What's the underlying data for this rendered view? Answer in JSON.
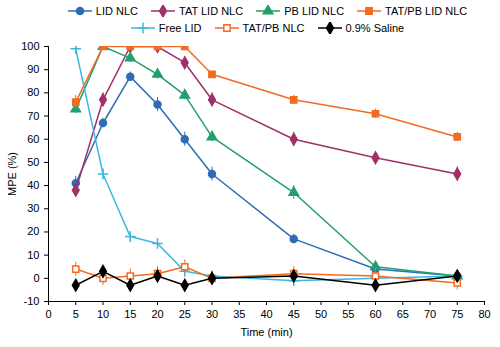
{
  "chart_data": {
    "type": "line",
    "x_label": "Time (min)",
    "y_label": "MPE (%)",
    "x": [
      5,
      10,
      15,
      20,
      25,
      30,
      45,
      60,
      75
    ],
    "xlim": [
      0,
      80
    ],
    "xticks": [
      0,
      5,
      10,
      15,
      20,
      25,
      30,
      35,
      40,
      45,
      50,
      55,
      60,
      65,
      70,
      75,
      80
    ],
    "ylim": [
      -10,
      100
    ],
    "yticks": [
      -10,
      0,
      10,
      20,
      30,
      40,
      50,
      60,
      70,
      80,
      90,
      100
    ],
    "grid": false,
    "legend": "top",
    "series": [
      {
        "name": "LID NLC",
        "color": "#2e6db5",
        "marker": "circle",
        "line_style": "solid",
        "values": [
          41,
          67,
          87,
          75,
          60,
          45,
          17,
          4,
          1
        ],
        "errors": [
          3,
          2,
          2,
          3,
          3,
          3,
          2,
          2,
          2
        ]
      },
      {
        "name": "TAT LID NLC",
        "color": "#a0306a",
        "marker": "diamond",
        "line_style": "solid",
        "values": [
          38,
          77,
          100,
          100,
          93,
          77,
          60,
          52,
          45
        ],
        "errors": [
          3,
          3,
          0,
          0,
          2,
          3,
          3,
          2,
          3
        ]
      },
      {
        "name": "PB LID NLC",
        "color": "#22a06b",
        "marker": "triangle",
        "line_style": "solid",
        "values": [
          73,
          100,
          95,
          88,
          79,
          61,
          37,
          5,
          1
        ],
        "errors": [
          2,
          0,
          2,
          2,
          2,
          2,
          3,
          2,
          2
        ]
      },
      {
        "name": "TAT/PB LID NLC",
        "color": "#f26b21",
        "marker": "square",
        "line_style": "solid",
        "values": [
          76,
          100,
          100,
          100,
          100,
          88,
          77,
          71,
          61
        ],
        "errors": [
          3,
          0,
          0,
          0,
          0,
          1,
          2,
          2,
          2
        ]
      },
      {
        "name": "Free LID",
        "color": "#3cb8e0",
        "marker": "plus",
        "line_style": "solid",
        "values": [
          99,
          45,
          18,
          15,
          3,
          1,
          -1,
          0,
          1
        ],
        "errors": [
          2,
          2,
          2,
          2,
          2,
          2,
          2,
          2,
          2
        ]
      },
      {
        "name": "TAT/PB NLC",
        "color": "#f26b21",
        "marker": "open-square",
        "line_style": "solid",
        "values": [
          4,
          0,
          1,
          2,
          5,
          0,
          2,
          1,
          -2
        ],
        "errors": [
          3,
          3,
          3,
          3,
          3,
          3,
          3,
          3,
          3
        ]
      },
      {
        "name": "0.9% Saline",
        "color": "#000000",
        "marker": "diamond",
        "line_style": "solid",
        "values": [
          -3,
          3,
          -3,
          1,
          -3,
          0,
          1,
          -3,
          1
        ],
        "errors": [
          2,
          2,
          2,
          2,
          2,
          2,
          2,
          2,
          2
        ]
      }
    ]
  }
}
